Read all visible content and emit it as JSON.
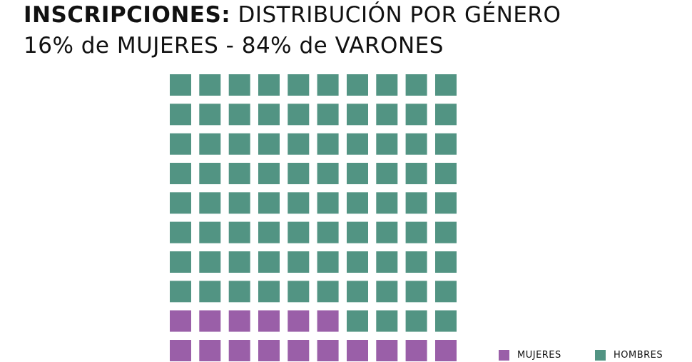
{
  "header": {
    "title_bold": "INSCRIPCIONES:",
    "title_rest": "DISTRIBUCIÓN POR GÉNERO",
    "subtitle": "16% de MUJERES - 84% de VARONES"
  },
  "chart_data": {
    "type": "waffle",
    "grid": {
      "rows": 10,
      "cols": 10
    },
    "categories": [
      "MUJERES",
      "HOMBRES"
    ],
    "values": [
      16,
      84
    ],
    "colors": {
      "MUJERES": "#9a5fa8",
      "HOMBRES": "#529483"
    },
    "fill_order": "bottom-up",
    "legend": {
      "position": "bottom-right",
      "items": [
        {
          "label": "MUJERES",
          "color": "#9a5fa8"
        },
        {
          "label": "HOMBRES",
          "color": "#529483"
        }
      ]
    }
  }
}
